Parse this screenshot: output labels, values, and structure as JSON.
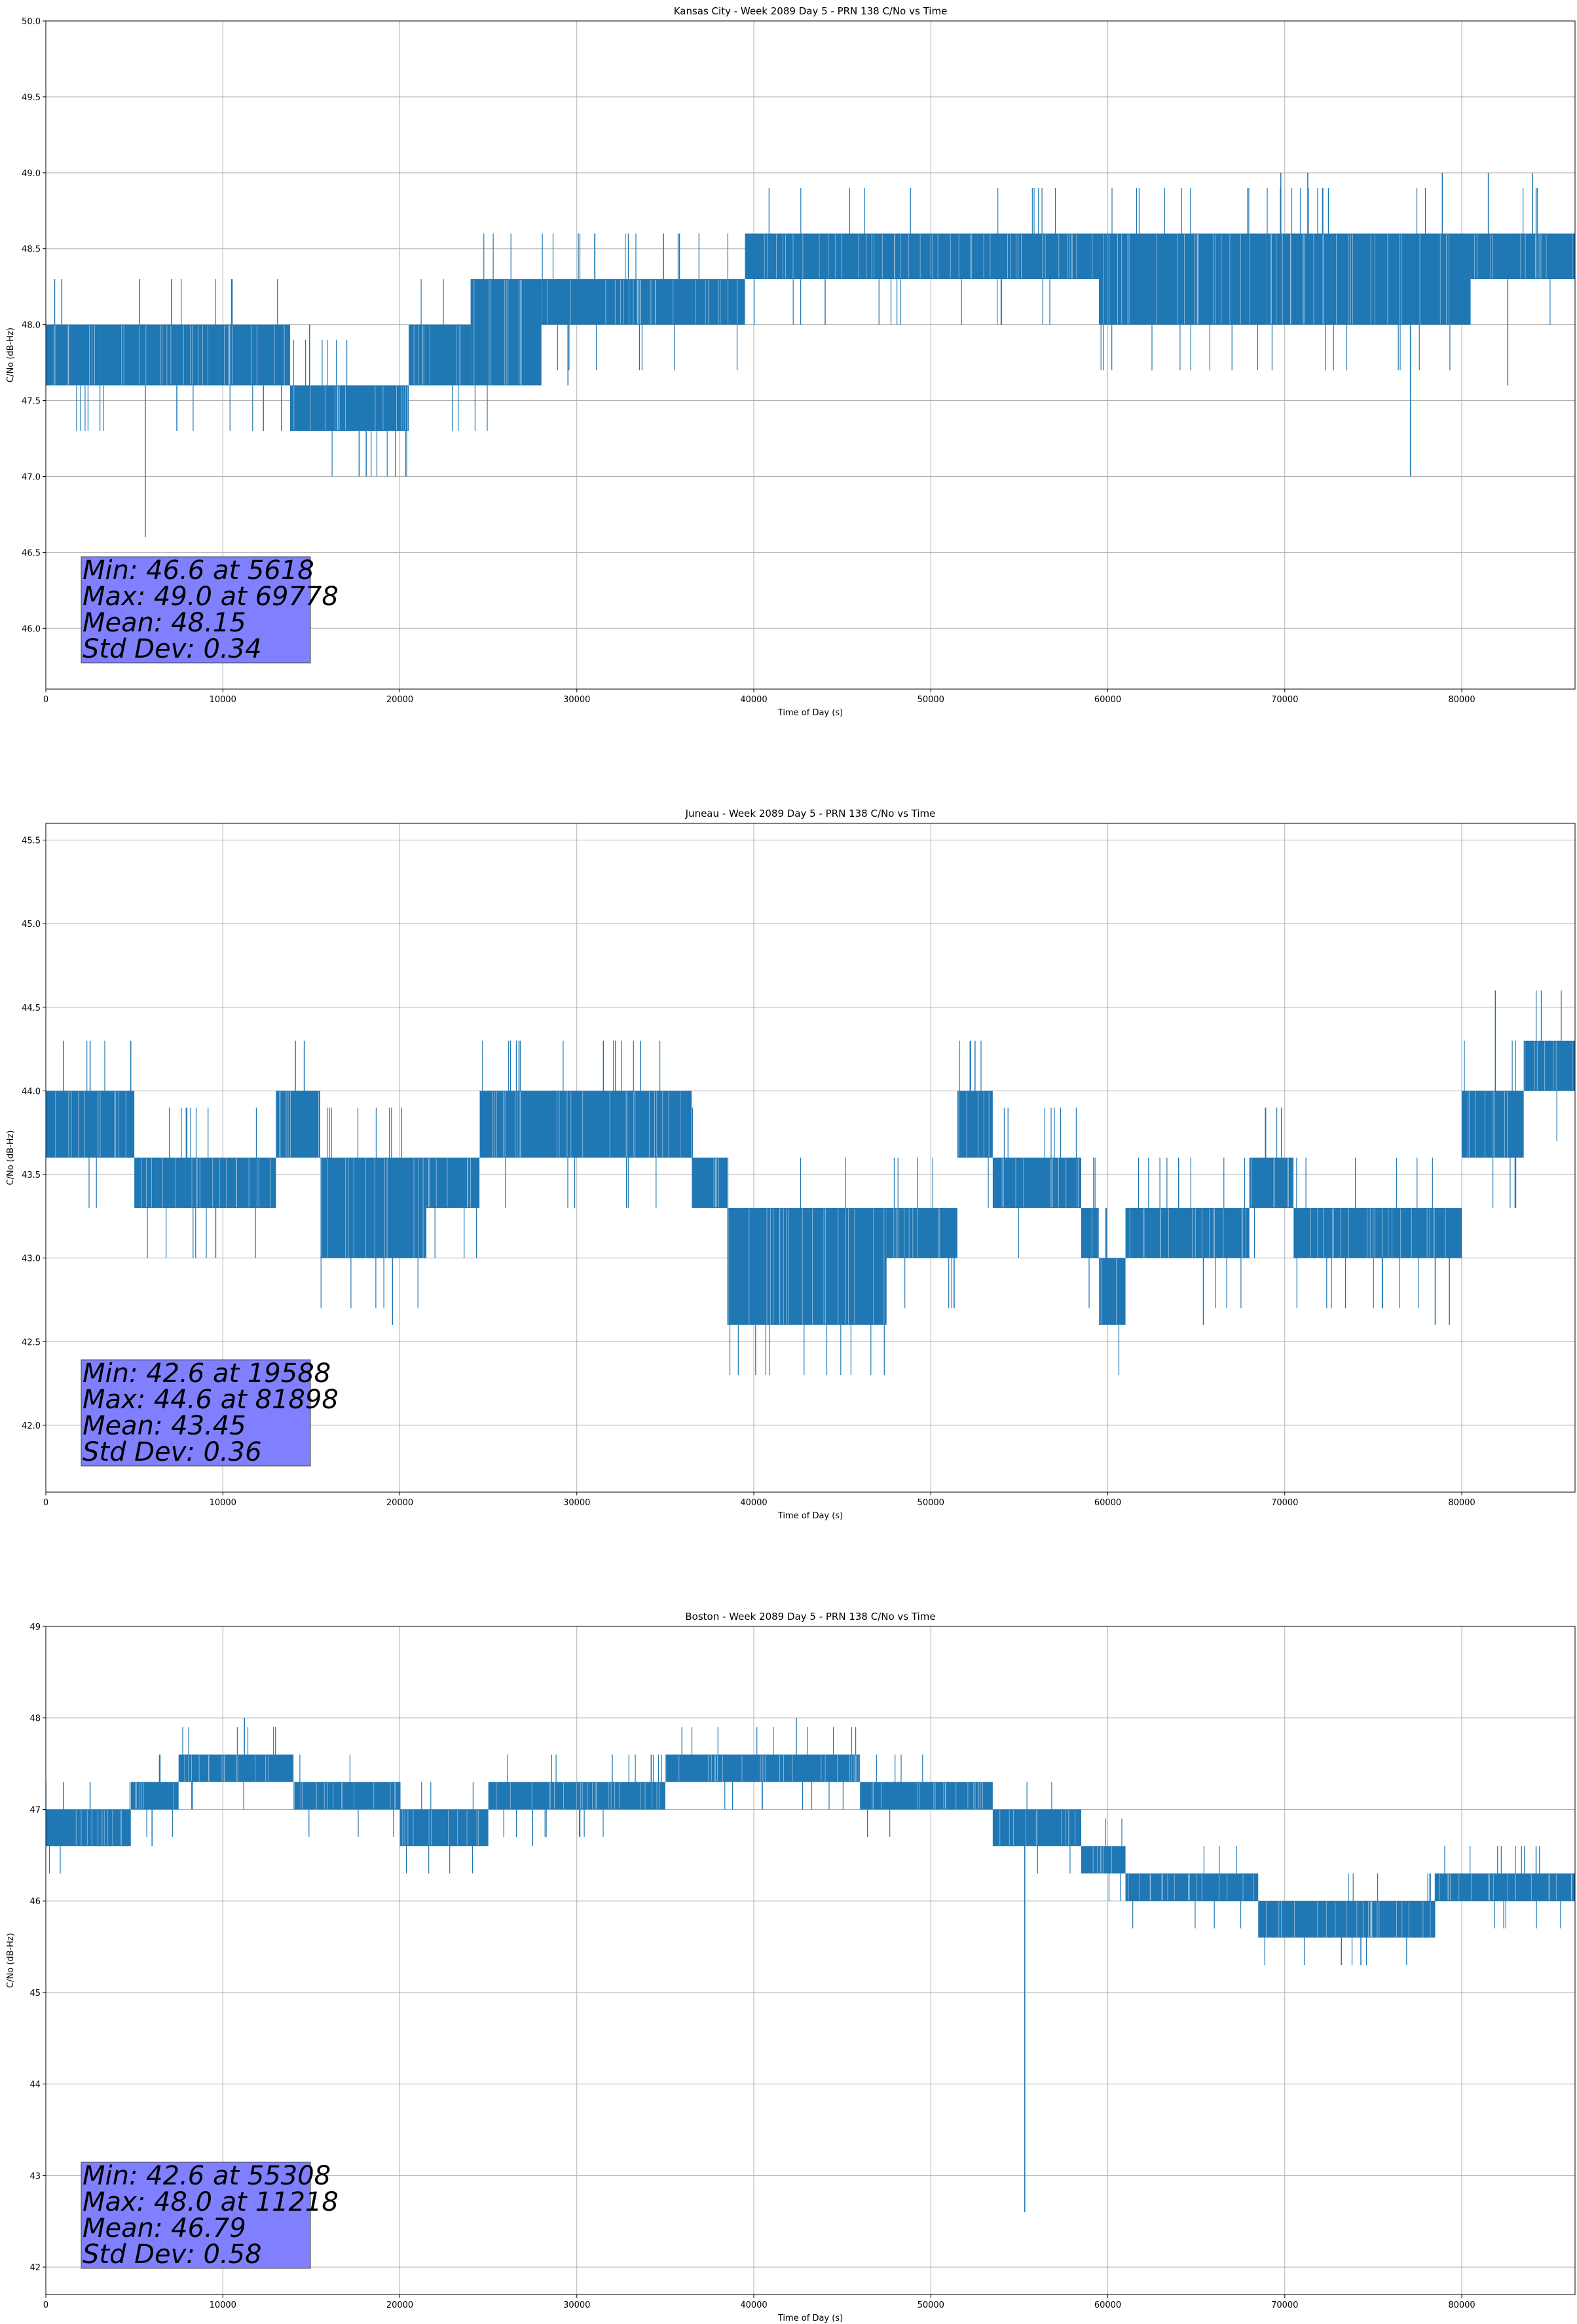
{
  "colors": {
    "line": "#1f77b4",
    "grid": "#b0b0b0",
    "statbox": "#8080ff"
  },
  "chart_data": [
    {
      "type": "line",
      "title": "Kansas City - Week 2089 Day 5 - PRN 138 C/No vs Time",
      "xlabel": "Time of Day (s)",
      "ylabel": "C/No (dB-Hz)",
      "xlim": [
        0,
        86400
      ],
      "ylim": [
        45.6,
        50.0
      ],
      "xticks": [
        0,
        10000,
        20000,
        30000,
        40000,
        50000,
        60000,
        70000,
        80000
      ],
      "yticks": [
        46.0,
        46.5,
        47.0,
        47.5,
        48.0,
        48.5,
        49.0,
        49.5,
        50.0
      ],
      "ytick_decimals": 1,
      "grid": true,
      "stats": [
        "Min: 46.6 at 5618",
        "Max: 49.0 at 69778",
        "Mean: 48.15",
        "Std Dev: 0.34"
      ],
      "segments": [
        {
          "x": [
            0,
            3000
          ],
          "y": [
            47.6,
            48.0
          ]
        },
        {
          "x": [
            3000,
            13800
          ],
          "y": [
            47.6,
            48.0
          ]
        },
        {
          "x": [
            13800,
            20500
          ],
          "y": [
            47.3,
            47.6
          ]
        },
        {
          "x": [
            20500,
            24000
          ],
          "y": [
            47.6,
            48.0
          ]
        },
        {
          "x": [
            24000,
            28000
          ],
          "y": [
            47.6,
            48.3
          ]
        },
        {
          "x": [
            28000,
            39500
          ],
          "y": [
            48.0,
            48.3
          ]
        },
        {
          "x": [
            39500,
            59500
          ],
          "y": [
            48.3,
            48.6
          ]
        },
        {
          "x": [
            59500,
            69000
          ],
          "y": [
            48.0,
            48.6
          ]
        },
        {
          "x": [
            69000,
            80500
          ],
          "y": [
            48.0,
            48.6
          ]
        },
        {
          "x": [
            80500,
            86400
          ],
          "y": [
            48.3,
            48.6
          ]
        }
      ],
      "spikes": [
        {
          "x": 500,
          "y": 48.3
        },
        {
          "x": 900,
          "y": 48.3
        },
        {
          "x": 5618,
          "y": 46.6
        },
        {
          "x": 5300,
          "y": 48.3
        },
        {
          "x": 7100,
          "y": 48.3
        },
        {
          "x": 7400,
          "y": 47.3
        },
        {
          "x": 14900,
          "y": 48.0
        },
        {
          "x": 17700,
          "y": 47.0
        },
        {
          "x": 18100,
          "y": 47.0
        },
        {
          "x": 26800,
          "y": 47.6
        },
        {
          "x": 29500,
          "y": 47.6
        },
        {
          "x": 34900,
          "y": 48.6
        },
        {
          "x": 35800,
          "y": 48.6
        },
        {
          "x": 69778,
          "y": 49.0
        },
        {
          "x": 71300,
          "y": 49.0
        },
        {
          "x": 77100,
          "y": 47.0
        },
        {
          "x": 78900,
          "y": 49.0
        },
        {
          "x": 82600,
          "y": 47.6
        },
        {
          "x": 84000,
          "y": 49.0
        },
        {
          "x": 81500,
          "y": 49.0
        }
      ]
    },
    {
      "type": "line",
      "title": "Juneau - Week 2089 Day 5 - PRN 138 C/No vs Time",
      "xlabel": "Time of Day (s)",
      "ylabel": "C/No (dB-Hz)",
      "xlim": [
        0,
        86400
      ],
      "ylim": [
        41.6,
        45.6
      ],
      "xticks": [
        0,
        10000,
        20000,
        30000,
        40000,
        50000,
        60000,
        70000,
        80000
      ],
      "yticks": [
        42.0,
        42.5,
        43.0,
        43.5,
        44.0,
        44.5,
        45.0,
        45.5
      ],
      "ytick_decimals": 1,
      "grid": true,
      "stats": [
        "Min: 42.6 at 19588",
        "Max: 44.6 at 81898",
        "Mean: 43.45",
        "Std Dev: 0.36"
      ],
      "segments": [
        {
          "x": [
            0,
            5000
          ],
          "y": [
            43.6,
            44.0
          ]
        },
        {
          "x": [
            5000,
            13000
          ],
          "y": [
            43.3,
            43.6
          ]
        },
        {
          "x": [
            13000,
            15500
          ],
          "y": [
            43.6,
            44.0
          ]
        },
        {
          "x": [
            15500,
            21500
          ],
          "y": [
            43.0,
            43.6
          ]
        },
        {
          "x": [
            21500,
            24500
          ],
          "y": [
            43.3,
            43.6
          ]
        },
        {
          "x": [
            24500,
            36500
          ],
          "y": [
            43.6,
            44.0
          ]
        },
        {
          "x": [
            36500,
            38500
          ],
          "y": [
            43.3,
            43.6
          ]
        },
        {
          "x": [
            38500,
            47500
          ],
          "y": [
            42.6,
            43.3
          ]
        },
        {
          "x": [
            47500,
            51500
          ],
          "y": [
            43.0,
            43.3
          ]
        },
        {
          "x": [
            51500,
            53500
          ],
          "y": [
            43.6,
            44.0
          ]
        },
        {
          "x": [
            53500,
            58500
          ],
          "y": [
            43.3,
            43.6
          ]
        },
        {
          "x": [
            58500,
            59500
          ],
          "y": [
            43.0,
            43.3
          ]
        },
        {
          "x": [
            59500,
            61000
          ],
          "y": [
            42.6,
            43.0
          ]
        },
        {
          "x": [
            61000,
            68000
          ],
          "y": [
            43.0,
            43.3
          ]
        },
        {
          "x": [
            68000,
            70500
          ],
          "y": [
            43.3,
            43.6
          ]
        },
        {
          "x": [
            70500,
            80000
          ],
          "y": [
            43.0,
            43.3
          ]
        },
        {
          "x": [
            80000,
            83500
          ],
          "y": [
            43.6,
            44.0
          ]
        },
        {
          "x": [
            83500,
            86400
          ],
          "y": [
            44.0,
            44.3
          ]
        }
      ],
      "spikes": [
        {
          "x": 1000,
          "y": 44.3
        },
        {
          "x": 2500,
          "y": 44.3
        },
        {
          "x": 4800,
          "y": 44.3
        },
        {
          "x": 14600,
          "y": 44.3
        },
        {
          "x": 19588,
          "y": 42.6
        },
        {
          "x": 9600,
          "y": 43.0
        },
        {
          "x": 31500,
          "y": 44.3
        },
        {
          "x": 33600,
          "y": 44.3
        },
        {
          "x": 52500,
          "y": 44.3
        },
        {
          "x": 65400,
          "y": 42.6
        },
        {
          "x": 64000,
          "y": 43.6
        },
        {
          "x": 81898,
          "y": 44.6
        },
        {
          "x": 78500,
          "y": 42.6
        },
        {
          "x": 79300,
          "y": 42.6
        },
        {
          "x": 85000,
          "y": 44.3
        }
      ]
    },
    {
      "type": "line",
      "title": "Boston - Week 2089 Day 5 - PRN 138 C/No vs Time",
      "xlabel": "Time of Day (s)",
      "ylabel": "C/No (dB-Hz)",
      "xlim": [
        0,
        86400
      ],
      "ylim": [
        41.7,
        49.0
      ],
      "xticks": [
        0,
        10000,
        20000,
        30000,
        40000,
        50000,
        60000,
        70000,
        80000
      ],
      "yticks": [
        42,
        43,
        44,
        45,
        46,
        47,
        48,
        49
      ],
      "ytick_decimals": 0,
      "grid": true,
      "stats": [
        "Min: 42.6 at 55308",
        "Max: 48.0 at 11218",
        "Mean: 46.79",
        "Std Dev: 0.58"
      ],
      "segments": [
        {
          "x": [
            0,
            4800
          ],
          "y": [
            46.6,
            47.0
          ]
        },
        {
          "x": [
            4800,
            7500
          ],
          "y": [
            47.0,
            47.3
          ]
        },
        {
          "x": [
            7500,
            14000
          ],
          "y": [
            47.3,
            47.6
          ]
        },
        {
          "x": [
            14000,
            20000
          ],
          "y": [
            47.0,
            47.3
          ]
        },
        {
          "x": [
            20000,
            25000
          ],
          "y": [
            46.6,
            47.0
          ]
        },
        {
          "x": [
            25000,
            35000
          ],
          "y": [
            47.0,
            47.3
          ]
        },
        {
          "x": [
            35000,
            46000
          ],
          "y": [
            47.3,
            47.6
          ]
        },
        {
          "x": [
            46000,
            53500
          ],
          "y": [
            47.0,
            47.3
          ]
        },
        {
          "x": [
            53500,
            58500
          ],
          "y": [
            46.6,
            47.0
          ]
        },
        {
          "x": [
            58500,
            61000
          ],
          "y": [
            46.3,
            46.6
          ]
        },
        {
          "x": [
            61000,
            68500
          ],
          "y": [
            46.0,
            46.3
          ]
        },
        {
          "x": [
            68500,
            78500
          ],
          "y": [
            45.6,
            46.0
          ]
        },
        {
          "x": [
            78500,
            86400
          ],
          "y": [
            46.0,
            46.3
          ]
        }
      ],
      "spikes": [
        {
          "x": 11218,
          "y": 48.0
        },
        {
          "x": 42400,
          "y": 48.0
        },
        {
          "x": 55308,
          "y": 42.6
        },
        {
          "x": 1000,
          "y": 47.3
        },
        {
          "x": 2500,
          "y": 47.3
        },
        {
          "x": 6000,
          "y": 46.6
        },
        {
          "x": 21200,
          "y": 46.6
        },
        {
          "x": 27500,
          "y": 46.6
        },
        {
          "x": 32000,
          "y": 47.6
        },
        {
          "x": 34200,
          "y": 47.6
        },
        {
          "x": 73200,
          "y": 45.3
        },
        {
          "x": 74300,
          "y": 45.3
        },
        {
          "x": 84200,
          "y": 46.6
        }
      ]
    }
  ]
}
